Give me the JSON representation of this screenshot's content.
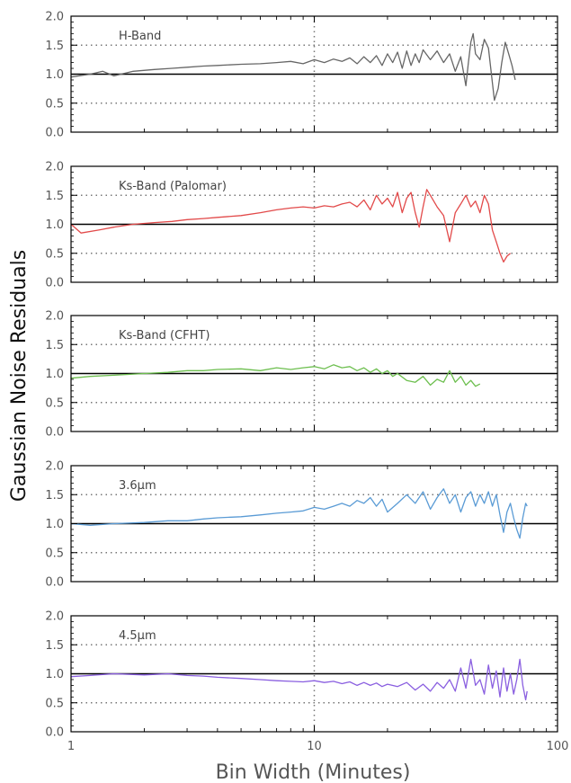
{
  "chart_data": {
    "type": "line",
    "xlabel": "Bin Width (Minutes)",
    "ylabel": "Gaussian Noise Residuals",
    "xscale": "log",
    "xlim": [
      1,
      100
    ],
    "x_tick_labels": [
      "1",
      "10",
      "100"
    ],
    "x_ticks": [
      1,
      10,
      100
    ],
    "grid": "dotted vertical line at x=10; dotted horizontal lines at y=0.5 and y=1.5; solid horizontal line at y=1.0",
    "panels": [
      {
        "label": "H-Band",
        "color": "#666666",
        "ylim": [
          0.0,
          2.0
        ],
        "y_tick_labels": [
          "0.0",
          "0.5",
          "1.0",
          "1.5",
          "2.0"
        ],
        "points": [
          [
            1.0,
            0.95
          ],
          [
            1.2,
            1.0
          ],
          [
            1.35,
            1.05
          ],
          [
            1.5,
            0.97
          ],
          [
            1.8,
            1.05
          ],
          [
            2.2,
            1.08
          ],
          [
            2.6,
            1.1
          ],
          [
            3.0,
            1.12
          ],
          [
            3.5,
            1.14
          ],
          [
            4.0,
            1.15
          ],
          [
            5.0,
            1.17
          ],
          [
            6.0,
            1.18
          ],
          [
            7.0,
            1.2
          ],
          [
            8.0,
            1.22
          ],
          [
            9.0,
            1.18
          ],
          [
            10.0,
            1.25
          ],
          [
            11.0,
            1.2
          ],
          [
            12.0,
            1.26
          ],
          [
            13.0,
            1.22
          ],
          [
            14.0,
            1.28
          ],
          [
            15.0,
            1.18
          ],
          [
            16.0,
            1.3
          ],
          [
            17.0,
            1.2
          ],
          [
            18.0,
            1.32
          ],
          [
            19.0,
            1.15
          ],
          [
            20.0,
            1.35
          ],
          [
            21.0,
            1.2
          ],
          [
            22.0,
            1.38
          ],
          [
            23.0,
            1.1
          ],
          [
            24.0,
            1.4
          ],
          [
            25.0,
            1.15
          ],
          [
            26.0,
            1.35
          ],
          [
            27.0,
            1.2
          ],
          [
            28.0,
            1.42
          ],
          [
            30.0,
            1.25
          ],
          [
            32.0,
            1.4
          ],
          [
            34.0,
            1.2
          ],
          [
            36.0,
            1.35
          ],
          [
            38.0,
            1.05
          ],
          [
            40.0,
            1.3
          ],
          [
            42.0,
            0.8
          ],
          [
            43.0,
            1.2
          ],
          [
            44.0,
            1.55
          ],
          [
            45.0,
            1.7
          ],
          [
            46.0,
            1.35
          ],
          [
            48.0,
            1.25
          ],
          [
            50.0,
            1.6
          ],
          [
            52.0,
            1.45
          ],
          [
            54.0,
            0.85
          ],
          [
            55.0,
            0.55
          ],
          [
            57.0,
            0.75
          ],
          [
            59.0,
            1.2
          ],
          [
            61.0,
            1.55
          ],
          [
            63.0,
            1.35
          ],
          [
            65.0,
            1.15
          ],
          [
            67.0,
            0.9
          ]
        ]
      },
      {
        "label": "Ks-Band (Palomar)",
        "color": "#e24a4a",
        "ylim": [
          0.0,
          2.0
        ],
        "y_tick_labels": [
          "0.0",
          "0.5",
          "1.0",
          "1.5",
          "2.0"
        ],
        "points": [
          [
            1.0,
            1.0
          ],
          [
            1.1,
            0.85
          ],
          [
            1.3,
            0.9
          ],
          [
            1.5,
            0.95
          ],
          [
            1.8,
            1.0
          ],
          [
            2.2,
            1.03
          ],
          [
            2.6,
            1.05
          ],
          [
            3.0,
            1.08
          ],
          [
            3.5,
            1.1
          ],
          [
            4.0,
            1.12
          ],
          [
            5.0,
            1.15
          ],
          [
            6.0,
            1.2
          ],
          [
            7.0,
            1.25
          ],
          [
            8.0,
            1.28
          ],
          [
            9.0,
            1.3
          ],
          [
            10.0,
            1.28
          ],
          [
            11.0,
            1.32
          ],
          [
            12.0,
            1.3
          ],
          [
            13.0,
            1.35
          ],
          [
            14.0,
            1.38
          ],
          [
            15.0,
            1.3
          ],
          [
            16.0,
            1.42
          ],
          [
            17.0,
            1.25
          ],
          [
            18.0,
            1.5
          ],
          [
            19.0,
            1.35
          ],
          [
            20.0,
            1.45
          ],
          [
            21.0,
            1.3
          ],
          [
            22.0,
            1.55
          ],
          [
            23.0,
            1.2
          ],
          [
            24.0,
            1.45
          ],
          [
            25.0,
            1.55
          ],
          [
            26.0,
            1.2
          ],
          [
            27.0,
            0.95
          ],
          [
            28.0,
            1.3
          ],
          [
            29.0,
            1.6
          ],
          [
            30.0,
            1.5
          ],
          [
            32.0,
            1.3
          ],
          [
            34.0,
            1.15
          ],
          [
            36.0,
            0.7
          ],
          [
            38.0,
            1.2
          ],
          [
            40.0,
            1.35
          ],
          [
            42.0,
            1.5
          ],
          [
            44.0,
            1.3
          ],
          [
            46.0,
            1.4
          ],
          [
            48.0,
            1.2
          ],
          [
            50.0,
            1.5
          ],
          [
            52.0,
            1.35
          ],
          [
            54.0,
            0.9
          ],
          [
            56.0,
            0.7
          ],
          [
            58.0,
            0.5
          ],
          [
            60.0,
            0.35
          ],
          [
            62.0,
            0.45
          ],
          [
            64.0,
            0.5
          ]
        ]
      },
      {
        "label": "Ks-Band (CFHT)",
        "color": "#6dbf4f",
        "ylim": [
          0.0,
          2.0
        ],
        "y_tick_labels": [
          "0.0",
          "0.5",
          "1.0",
          "1.5",
          "2.0"
        ],
        "points": [
          [
            1.0,
            0.92
          ],
          [
            1.2,
            0.95
          ],
          [
            1.5,
            0.97
          ],
          [
            2.0,
            1.0
          ],
          [
            2.5,
            1.02
          ],
          [
            3.0,
            1.05
          ],
          [
            3.5,
            1.05
          ],
          [
            4.0,
            1.07
          ],
          [
            5.0,
            1.08
          ],
          [
            6.0,
            1.05
          ],
          [
            7.0,
            1.1
          ],
          [
            8.0,
            1.07
          ],
          [
            9.0,
            1.1
          ],
          [
            10.0,
            1.12
          ],
          [
            11.0,
            1.08
          ],
          [
            12.0,
            1.15
          ],
          [
            13.0,
            1.1
          ],
          [
            14.0,
            1.12
          ],
          [
            15.0,
            1.05
          ],
          [
            16.0,
            1.1
          ],
          [
            17.0,
            1.02
          ],
          [
            18.0,
            1.08
          ],
          [
            19.0,
            1.0
          ],
          [
            20.0,
            1.05
          ],
          [
            21.0,
            0.95
          ],
          [
            22.0,
            1.0
          ],
          [
            24.0,
            0.88
          ],
          [
            26.0,
            0.85
          ],
          [
            28.0,
            0.95
          ],
          [
            30.0,
            0.8
          ],
          [
            32.0,
            0.9
          ],
          [
            34.0,
            0.85
          ],
          [
            36.0,
            1.05
          ],
          [
            38.0,
            0.85
          ],
          [
            40.0,
            0.95
          ],
          [
            42.0,
            0.8
          ],
          [
            44.0,
            0.88
          ],
          [
            46.0,
            0.78
          ],
          [
            48.0,
            0.82
          ]
        ]
      },
      {
        "label": "3.6μm",
        "color": "#5a9bd5",
        "ylim": [
          0.0,
          2.0
        ],
        "y_tick_labels": [
          "0.0",
          "0.5",
          "1.0",
          "1.5",
          "2.0"
        ],
        "points": [
          [
            1.0,
            1.0
          ],
          [
            1.2,
            0.97
          ],
          [
            1.5,
            1.0
          ],
          [
            2.0,
            1.02
          ],
          [
            2.5,
            1.05
          ],
          [
            3.0,
            1.05
          ],
          [
            3.5,
            1.08
          ],
          [
            4.0,
            1.1
          ],
          [
            5.0,
            1.12
          ],
          [
            6.0,
            1.15
          ],
          [
            7.0,
            1.18
          ],
          [
            8.0,
            1.2
          ],
          [
            9.0,
            1.22
          ],
          [
            10.0,
            1.28
          ],
          [
            11.0,
            1.25
          ],
          [
            12.0,
            1.3
          ],
          [
            13.0,
            1.35
          ],
          [
            14.0,
            1.3
          ],
          [
            15.0,
            1.4
          ],
          [
            16.0,
            1.35
          ],
          [
            17.0,
            1.45
          ],
          [
            18.0,
            1.3
          ],
          [
            19.0,
            1.42
          ],
          [
            20.0,
            1.2
          ],
          [
            22.0,
            1.35
          ],
          [
            24.0,
            1.5
          ],
          [
            26.0,
            1.35
          ],
          [
            28.0,
            1.55
          ],
          [
            30.0,
            1.25
          ],
          [
            32.0,
            1.45
          ],
          [
            34.0,
            1.6
          ],
          [
            36.0,
            1.35
          ],
          [
            38.0,
            1.5
          ],
          [
            40.0,
            1.2
          ],
          [
            42.0,
            1.45
          ],
          [
            44.0,
            1.55
          ],
          [
            46.0,
            1.3
          ],
          [
            48.0,
            1.5
          ],
          [
            50.0,
            1.35
          ],
          [
            52.0,
            1.55
          ],
          [
            54.0,
            1.3
          ],
          [
            56.0,
            1.5
          ],
          [
            58.0,
            1.15
          ],
          [
            60.0,
            0.85
          ],
          [
            62.0,
            1.2
          ],
          [
            64.0,
            1.35
          ],
          [
            66.0,
            1.1
          ],
          [
            68.0,
            0.9
          ],
          [
            70.0,
            0.75
          ],
          [
            72.0,
            1.1
          ],
          [
            74.0,
            1.35
          ],
          [
            75.0,
            1.3
          ]
        ]
      },
      {
        "label": "4.5μm",
        "color": "#8a5fe0",
        "ylim": [
          0.0,
          2.0
        ],
        "y_tick_labels": [
          "0.0",
          "0.5",
          "1.0",
          "1.5",
          "2.0"
        ],
        "points": [
          [
            1.0,
            0.95
          ],
          [
            1.2,
            0.97
          ],
          [
            1.5,
            1.0
          ],
          [
            2.0,
            0.98
          ],
          [
            2.5,
            1.0
          ],
          [
            3.0,
            0.97
          ],
          [
            3.5,
            0.96
          ],
          [
            4.0,
            0.94
          ],
          [
            5.0,
            0.92
          ],
          [
            6.0,
            0.9
          ],
          [
            7.0,
            0.88
          ],
          [
            8.0,
            0.87
          ],
          [
            9.0,
            0.86
          ],
          [
            10.0,
            0.88
          ],
          [
            11.0,
            0.85
          ],
          [
            12.0,
            0.87
          ],
          [
            13.0,
            0.83
          ],
          [
            14.0,
            0.86
          ],
          [
            15.0,
            0.8
          ],
          [
            16.0,
            0.85
          ],
          [
            17.0,
            0.8
          ],
          [
            18.0,
            0.84
          ],
          [
            19.0,
            0.78
          ],
          [
            20.0,
            0.82
          ],
          [
            22.0,
            0.78
          ],
          [
            24.0,
            0.85
          ],
          [
            26.0,
            0.72
          ],
          [
            28.0,
            0.82
          ],
          [
            30.0,
            0.7
          ],
          [
            32.0,
            0.85
          ],
          [
            34.0,
            0.75
          ],
          [
            36.0,
            0.9
          ],
          [
            38.0,
            0.7
          ],
          [
            40.0,
            1.1
          ],
          [
            42.0,
            0.75
          ],
          [
            44.0,
            1.25
          ],
          [
            46.0,
            0.8
          ],
          [
            48.0,
            0.9
          ],
          [
            50.0,
            0.65
          ],
          [
            52.0,
            1.15
          ],
          [
            54.0,
            0.75
          ],
          [
            56.0,
            1.05
          ],
          [
            58.0,
            0.6
          ],
          [
            60.0,
            1.1
          ],
          [
            62.0,
            0.7
          ],
          [
            64.0,
            1.0
          ],
          [
            66.0,
            0.65
          ],
          [
            68.0,
            0.9
          ],
          [
            70.0,
            1.25
          ],
          [
            72.0,
            0.8
          ],
          [
            74.0,
            0.55
          ],
          [
            75.0,
            0.7
          ]
        ]
      }
    ]
  }
}
